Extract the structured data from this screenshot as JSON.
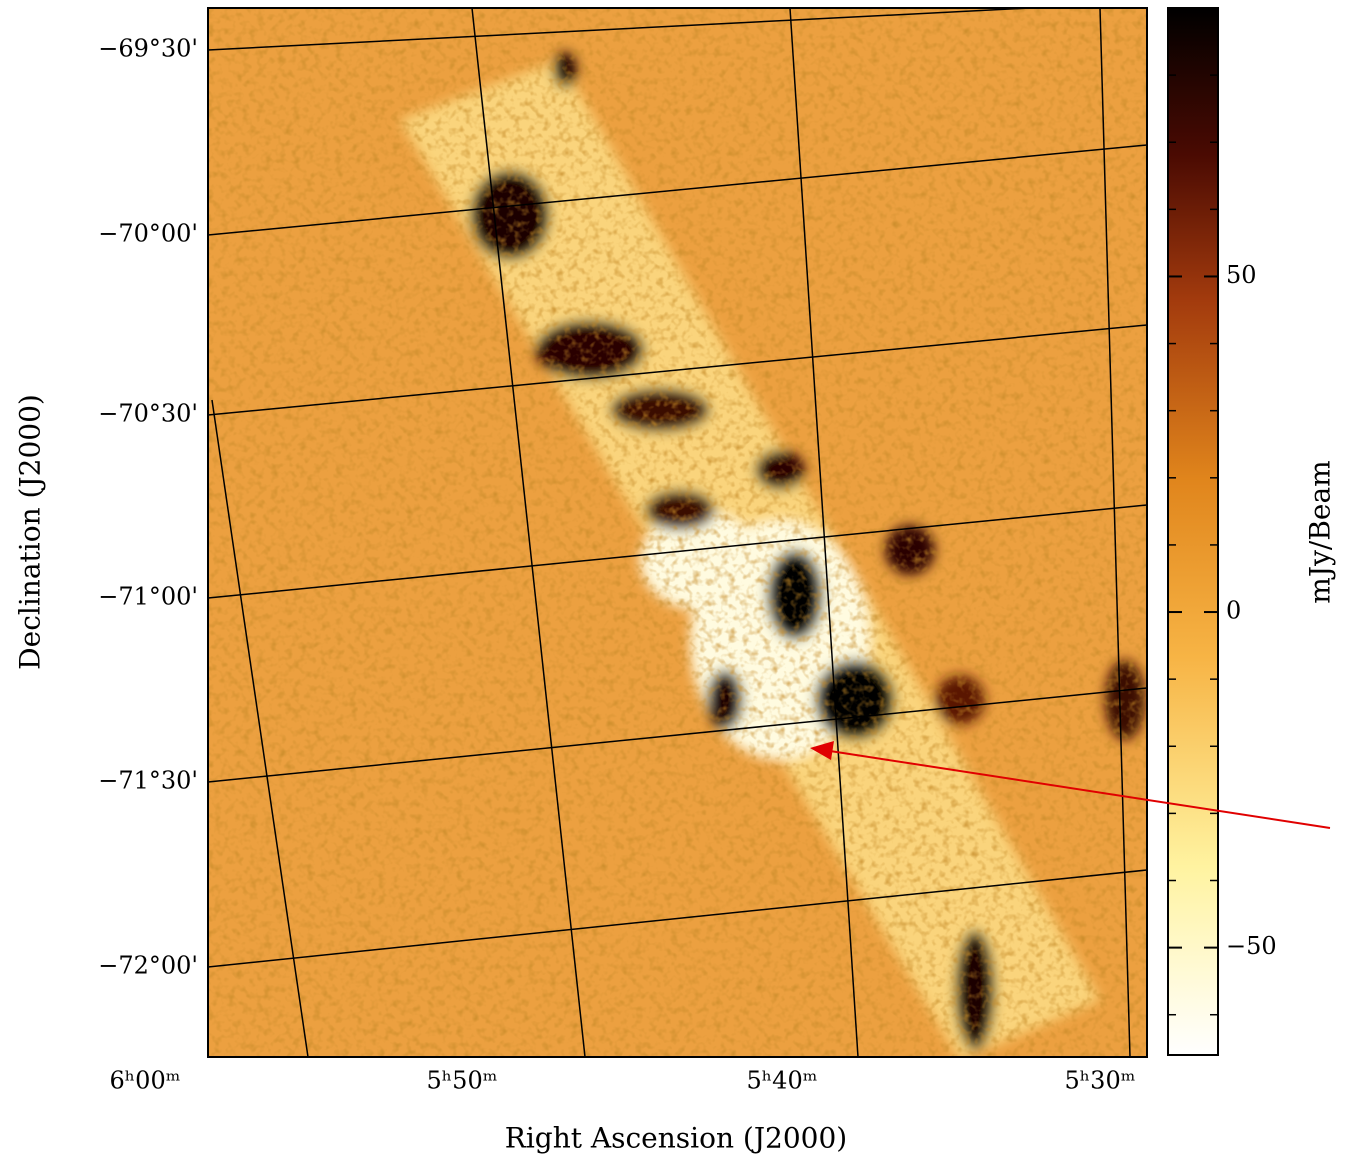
{
  "image_plot": {
    "y_axis_label": "Declination (J2000)",
    "x_axis_label": "Right Ascension (J2000)",
    "dec_tick_labels": [
      "−69°30'",
      "−70°00'",
      "−70°30'",
      "−71°00'",
      "−71°30'",
      "−72°00'"
    ],
    "ra_tick_labels": [
      "6ʰ00ᵐ",
      "5ʰ50ᵐ",
      "5ʰ40ᵐ",
      "5ʰ30ᵐ"
    ]
  },
  "colorbar": {
    "label": "mJy/Beam",
    "clim": [
      -66,
      90
    ],
    "ticks": [
      50,
      0,
      {
        "value": -50,
        "label": "−50"
      }
    ],
    "minor_ticks": [
      -60,
      -40,
      -30,
      -20,
      -10,
      10,
      20,
      30,
      40,
      60,
      70,
      80
    ]
  }
}
